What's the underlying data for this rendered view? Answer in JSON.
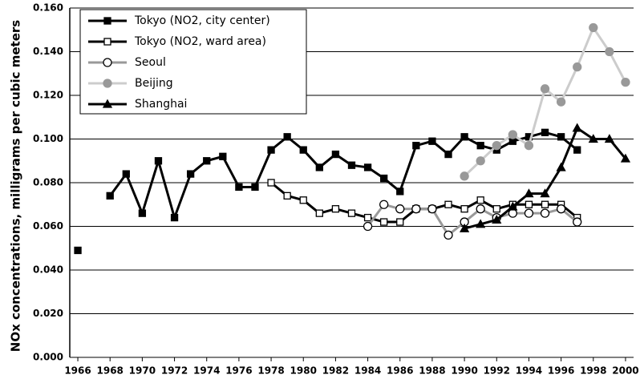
{
  "chart_data": {
    "type": "line",
    "y_label": "NOx concentrations, milligrams per cubic meters",
    "x": [
      1966,
      1967,
      1968,
      1969,
      1970,
      1971,
      1972,
      1973,
      1974,
      1975,
      1976,
      1977,
      1978,
      1979,
      1980,
      1981,
      1982,
      1983,
      1984,
      1985,
      1986,
      1987,
      1988,
      1989,
      1990,
      1991,
      1992,
      1993,
      1994,
      1995,
      1996,
      1997,
      1998,
      1999,
      2000
    ],
    "series": [
      {
        "name": "Tokyo (NO2, city center)",
        "color": "#000000",
        "marker": "square",
        "marker_fill": "#000000",
        "values": [
          0.049,
          null,
          0.074,
          0.084,
          0.066,
          0.09,
          0.064,
          0.084,
          0.09,
          0.092,
          0.078,
          0.078,
          0.095,
          0.101,
          0.095,
          0.087,
          0.093,
          0.088,
          0.087,
          0.082,
          0.076,
          0.097,
          0.099,
          0.093,
          0.101,
          0.097,
          0.095,
          0.099,
          0.101,
          0.103,
          0.101,
          0.095,
          null,
          null,
          null
        ]
      },
      {
        "name": "Tokyo (NO2, ward area)",
        "color": "#000000",
        "marker": "square",
        "marker_fill": "#ffffff",
        "values": [
          null,
          null,
          null,
          null,
          null,
          null,
          null,
          null,
          null,
          null,
          null,
          null,
          0.08,
          0.074,
          0.072,
          0.066,
          0.068,
          0.066,
          0.064,
          0.062,
          0.062,
          0.068,
          0.068,
          0.07,
          0.068,
          0.072,
          0.068,
          0.07,
          0.07,
          0.07,
          0.07,
          0.064,
          null,
          null,
          null
        ]
      },
      {
        "name": "Seoul",
        "color": "#999999",
        "marker": "circle",
        "marker_fill": "#ffffff",
        "values": [
          null,
          null,
          null,
          null,
          null,
          null,
          null,
          null,
          null,
          null,
          null,
          null,
          null,
          null,
          null,
          null,
          null,
          null,
          0.06,
          0.07,
          0.068,
          0.068,
          0.068,
          0.056,
          0.062,
          0.068,
          0.064,
          0.066,
          0.066,
          0.066,
          0.068,
          0.062,
          null,
          null,
          null
        ]
      },
      {
        "name": "Beijing",
        "color": "#cccccc",
        "marker": "circle",
        "marker_fill": "#999999",
        "values": [
          null,
          null,
          null,
          null,
          null,
          null,
          null,
          null,
          null,
          null,
          null,
          null,
          null,
          null,
          null,
          null,
          null,
          null,
          null,
          null,
          null,
          null,
          null,
          null,
          0.083,
          0.09,
          0.097,
          0.102,
          0.097,
          0.123,
          0.117,
          0.133,
          0.151,
          0.14,
          0.126
        ]
      },
      {
        "name": "Shanghai",
        "color": "#000000",
        "marker": "triangle",
        "marker_fill": "#000000",
        "values": [
          null,
          null,
          null,
          null,
          null,
          null,
          null,
          null,
          null,
          null,
          null,
          null,
          null,
          null,
          null,
          null,
          null,
          null,
          null,
          null,
          null,
          null,
          null,
          null,
          0.059,
          0.061,
          0.063,
          0.069,
          0.075,
          0.075,
          0.087,
          0.105,
          0.1,
          0.1,
          0.091
        ]
      }
    ],
    "xlim": [
      1965.5,
      2000.5
    ],
    "xticks": [
      1966,
      1968,
      1970,
      1972,
      1974,
      1976,
      1978,
      1980,
      1982,
      1984,
      1986,
      1988,
      1990,
      1992,
      1994,
      1996,
      1998,
      2000
    ],
    "ylim": [
      0,
      0.16
    ],
    "yticks": [
      {
        "value": 0,
        "label": "0.000"
      },
      {
        "value": 0.02,
        "label": "0.020"
      },
      {
        "value": 0.04,
        "label": "0.040"
      },
      {
        "value": 0.06,
        "label": "0.060"
      },
      {
        "value": 0.08,
        "label": "0.080"
      },
      {
        "value": 0.1,
        "label": "0.100"
      },
      {
        "value": 0.12,
        "label": "0.120"
      },
      {
        "value": 0.14,
        "label": "0.140"
      },
      {
        "value": 0.16,
        "label": "0.160"
      }
    ],
    "grid": true,
    "legend": "upper left"
  }
}
